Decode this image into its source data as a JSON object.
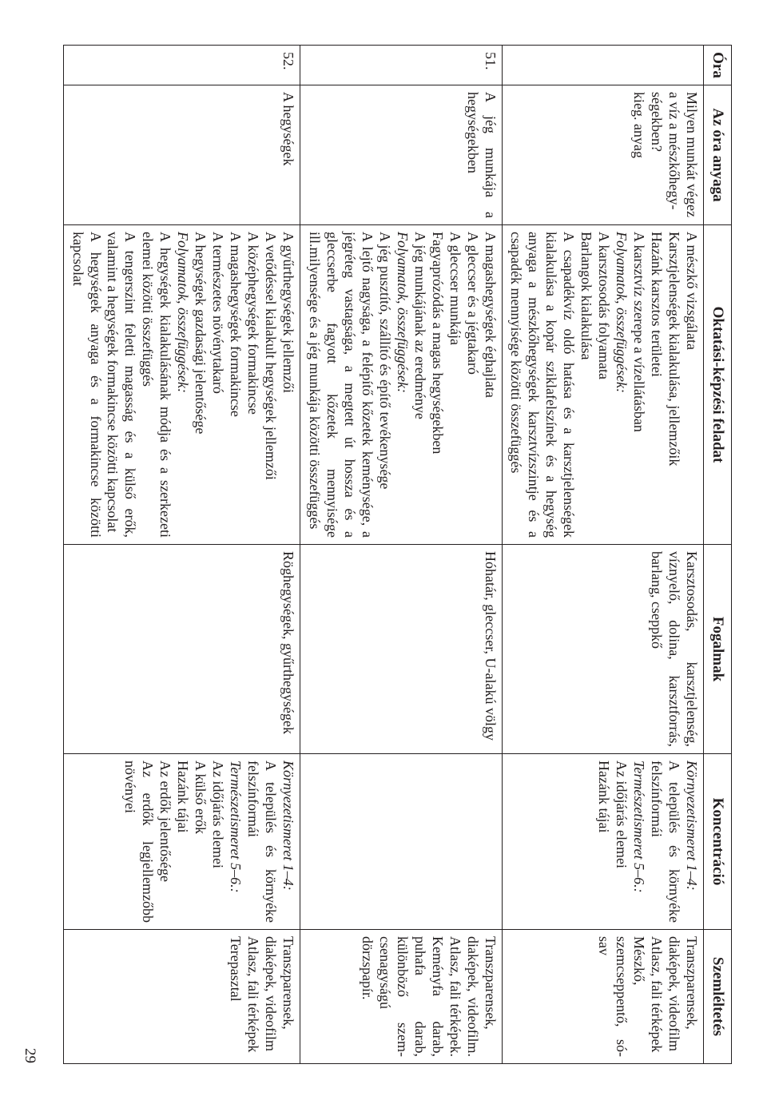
{
  "page_number": "29",
  "table": {
    "columns": [
      "Óra",
      "Az óra anyaga",
      "Oktatási-képzési feladat",
      "Fogalmak",
      "Koncentráció",
      "Szemléltetés"
    ],
    "rows": [
      {
        "ora": "",
        "anyag_1": "Milyen munkát végez a víz a mészkőhegy­ségekben?",
        "anyag_2": "kieg. anyag",
        "feladat_plain_1": "A mészkő vizsgálata",
        "feladat_plain_2": "Karsztjelenségek kialakulása, jellemzőik",
        "feladat_plain_3": "Hazánk karsztos területei",
        "feladat_plain_4": "A karsztvíz szerepe a vízellátásban",
        "feladat_italic": "Folyamatok, összefüggések:",
        "feladat_plain_5": "A karsztosodás folyamata",
        "feladat_plain_6": "Barlangok kialakulása",
        "feladat_plain_7": "A csapadékvíz oldó hatása és a karsztjelensé­gek kialakulása a kopár sziklafelszínek és a hegység anyaga a mészkőhegységek karszt­vízszintje és a csapadék mennyisége közötti összefüggés",
        "fogalmak": "Karsztosodás, karsztjelenség, víznyelő, dolina, karsztforrás, barlang, cseppkő",
        "konc_italic_1": "Környezetismeret 1–4:",
        "konc_plain_1": "A település és környéke felszín­formái",
        "konc_italic_2": "Természetismeret 5–6.:",
        "konc_plain_2": "Az időjárás elemei",
        "konc_plain_3": "Hazánk tájai",
        "szem_1": "Transzparensek, diaképek, videofilm",
        "szem_2": "Atlasz, fali térképek",
        "szem_3": "Mészkő, szemcseppentő, só­sav"
      },
      {
        "ora": "51.",
        "anyag_1": "A jég munkája a hegységek­ben",
        "feladat_plain_1": "A magashegységek éghajlata",
        "feladat_plain_2": "A gleccser és a jégtakaró",
        "feladat_plain_3": "A gleccser munkája",
        "feladat_plain_4": "Fagyaprózódás a magas hegységekben",
        "feladat_plain_5": "A jég munkájának az eredménye",
        "feladat_italic": "Folyamatok, összefüggések:",
        "feladat_plain_6": "A jég pusztító, szállító és építő tevékenysége",
        "feladat_plain_7": "A lejtő nagysága, a felépítő kőzetek ke­ménysége, a jégréteg vastagsága, a megtett út hossza és a gleccserbe fagyott kőzetek mennyisége ill.milyensége és a jég munkája közötti összefüggés",
        "fogalmak": "Hóhatár, gleccser, U-alakú völgy",
        "szem_1": "Transzparensek, diaképek, videofilm. Atlasz, fali térké­pek. Keményfa darab, puha­fa darab, különböző szem­csenagyságú dörzspapír."
      },
      {
        "ora": "52.",
        "anyag_1": "A hegységek",
        "feladat_plain_1": "A gyűrthegységek jellemzői",
        "feladat_plain_2": "A vetődéssel kialakult hegységek jellemzői",
        "feladat_plain_3": "A középhegységek formakincse",
        "feladat_plain_4": "A magashegységek formakincse",
        "feladat_plain_5": "A természetes növénytakaró",
        "feladat_plain_6": "A hegységek gazdasági jelentősége",
        "feladat_italic": "Folyamatok, összefüggések:",
        "feladat_plain_7": "A hegységek kialakulásának módja és a szer­kezeti elemei közötti összefüggés",
        "feladat_plain_8": "A tengerszint feletti magasság és a külső erők, valamint a hegységek formakincse kö­zötti kapcsolat",
        "feladat_plain_9": "A hegységek anyaga és a formakincse közöt­ti kapcsolat",
        "fogalmak": "Röghegységek, gyűrthegységek",
        "konc_italic_1": "Környezetismeret 1–4:",
        "konc_plain_1": "A település és környéke felszín­formái",
        "konc_italic_2": "Természetismeret 5–6.:",
        "konc_plain_2": "Az időjárás elemei",
        "konc_plain_3": "A külső erők",
        "konc_plain_4": "Hazánk tájai",
        "konc_plain_5": "Az erdők jelentősége",
        "konc_plain_6": "Az erdők legjellemzőbb növé­nyei",
        "szem_1": "Transzparensek, diaképek, videofilm",
        "szem_2": "Atlasz, fali térképek",
        "szem_3": "Terepasztal"
      }
    ]
  }
}
